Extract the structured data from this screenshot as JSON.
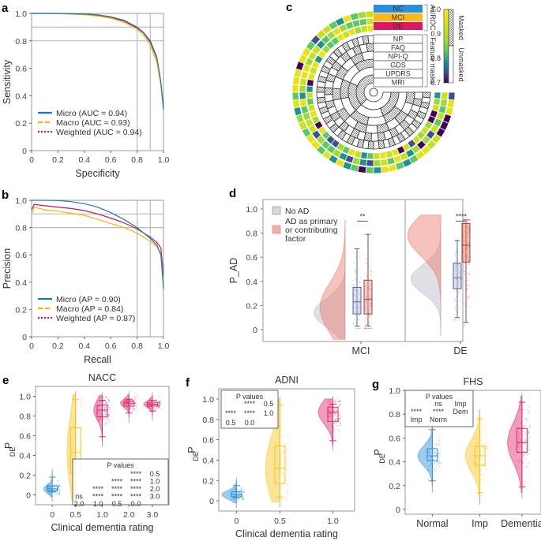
{
  "chart_data": [
    {
      "panel": "a",
      "type": "line",
      "title": "",
      "xlabel": "Specificity",
      "ylabel": "Sensitivity",
      "xlim": [
        0,
        1
      ],
      "ylim": [
        0,
        1
      ],
      "xticks": [
        "0",
        "0.2",
        "0.4",
        "0.6",
        "0.8",
        "1.0"
      ],
      "yticks": [
        "0",
        "0.2",
        "0.4",
        "0.6",
        "0.8",
        "1.0"
      ],
      "reference_lines": {
        "x": [
          0.8,
          0.9
        ],
        "y": [
          0.8,
          0.9
        ]
      },
      "legend_position": "bottom-left",
      "series": [
        {
          "name": "Micro (AUC = 0.94)",
          "color": "#1f77b4",
          "style": "solid",
          "x": [
            0,
            0.2,
            0.4,
            0.5,
            0.6,
            0.7,
            0.8,
            0.85,
            0.9,
            0.95,
            0.98,
            1.0
          ],
          "y": [
            1.0,
            1.0,
            0.995,
            0.99,
            0.975,
            0.95,
            0.9,
            0.86,
            0.8,
            0.68,
            0.5,
            0.3
          ]
        },
        {
          "name": "Macro (AUC = 0.93)",
          "color": "#f5b800",
          "style": "dashed",
          "x": [
            0,
            0.2,
            0.4,
            0.5,
            0.6,
            0.7,
            0.8,
            0.85,
            0.9,
            0.95,
            0.98,
            1.0
          ],
          "y": [
            1.0,
            0.998,
            0.99,
            0.98,
            0.965,
            0.935,
            0.885,
            0.84,
            0.77,
            0.64,
            0.47,
            0.3
          ]
        },
        {
          "name": "Weighted (AUC = 0.94)",
          "color": "#c2185b",
          "style": "dotted",
          "x": [
            0,
            0.2,
            0.4,
            0.5,
            0.6,
            0.7,
            0.8,
            0.85,
            0.9,
            0.95,
            0.98,
            1.0
          ],
          "y": [
            1.0,
            1.0,
            0.994,
            0.988,
            0.972,
            0.945,
            0.895,
            0.855,
            0.79,
            0.67,
            0.49,
            0.3
          ]
        }
      ]
    },
    {
      "panel": "b",
      "type": "line",
      "title": "",
      "xlabel": "Recall",
      "ylabel": "Precision",
      "xlim": [
        0,
        1
      ],
      "ylim": [
        0,
        1
      ],
      "xticks": [
        "0",
        "0.2",
        "0.4",
        "0.6",
        "0.8",
        "1.0"
      ],
      "yticks": [
        "0",
        "0.2",
        "0.4",
        "0.6",
        "0.8",
        "1.0"
      ],
      "reference_lines": {
        "x": [
          0.8,
          0.9
        ],
        "y": [
          0.8,
          0.9
        ]
      },
      "legend_position": "bottom-left",
      "series": [
        {
          "name": "Micro (AP = 0.90)",
          "color": "#1f77b4",
          "style": "solid",
          "x": [
            0,
            0.1,
            0.2,
            0.3,
            0.4,
            0.5,
            0.6,
            0.7,
            0.8,
            0.9,
            0.95,
            0.98,
            1.0
          ],
          "y": [
            1.0,
            1.0,
            0.998,
            0.99,
            0.975,
            0.95,
            0.91,
            0.86,
            0.8,
            0.72,
            0.67,
            0.6,
            0.35
          ]
        },
        {
          "name": "Macro (AP = 0.84)",
          "color": "#f5b800",
          "style": "dashed",
          "x": [
            0,
            0.02,
            0.1,
            0.2,
            0.3,
            0.4,
            0.5,
            0.6,
            0.7,
            0.8,
            0.9,
            0.95,
            0.98,
            1.0
          ],
          "y": [
            0.9,
            0.95,
            0.93,
            0.92,
            0.905,
            0.89,
            0.86,
            0.83,
            0.8,
            0.76,
            0.7,
            0.66,
            0.6,
            0.4
          ]
        },
        {
          "name": "Weighted (AP = 0.87)",
          "color": "#c2185b",
          "style": "dotted",
          "x": [
            0,
            0.02,
            0.1,
            0.2,
            0.3,
            0.4,
            0.5,
            0.6,
            0.7,
            0.8,
            0.9,
            0.95,
            0.98,
            1.0
          ],
          "y": [
            0.93,
            0.97,
            0.96,
            0.95,
            0.94,
            0.925,
            0.9,
            0.87,
            0.835,
            0.79,
            0.73,
            0.69,
            0.65,
            0.45
          ]
        }
      ]
    },
    {
      "panel": "c",
      "type": "heatmap",
      "title": "",
      "layout": "circular",
      "auroc_rows": [
        "NC",
        "MCI",
        "DE"
      ],
      "auroc_row_colors": [
        "#2b8fd6",
        "#f9b81c",
        "#d81b60"
      ],
      "auroc_group_label": "AUROC",
      "feature_rows": [
        "NP",
        "FAQ",
        "NPI-Q",
        "GDS",
        "UPDRS",
        "MRI"
      ],
      "feature_group_label": "Feature masks",
      "colorbar": {
        "min": 0.7,
        "max": 1.0,
        "ticks": [
          "1.0",
          "0.9",
          "0.8",
          "0.7"
        ],
        "colormap": "viridis"
      },
      "mask_legend": [
        "Masked",
        "Unmasked"
      ]
    },
    {
      "panel": "d",
      "type": "violin-box",
      "ylabel": "P_AD",
      "ylim": [
        0,
        1.0
      ],
      "yticks": [
        "0",
        "0.2",
        "0.4",
        "0.6",
        "0.8",
        "1.0"
      ],
      "categories": [
        "MCI",
        "DE"
      ],
      "legend_position": "top-left",
      "legend": [
        {
          "label": "No AD",
          "color": "#c8c8d0"
        },
        {
          "label": "AD as primary or contributing factor",
          "color": "#f0a49a"
        }
      ],
      "significance": [
        "**",
        "****"
      ],
      "boxes": [
        {
          "category": "MCI",
          "group": "No AD",
          "min": 0.03,
          "q1": 0.13,
          "median": 0.23,
          "q3": 0.35,
          "max": 0.67,
          "color": "#9a9ccc"
        },
        {
          "category": "MCI",
          "group": "AD",
          "min": 0.03,
          "q1": 0.13,
          "median": 0.25,
          "q3": 0.41,
          "max": 0.79,
          "color": "#e8776a"
        },
        {
          "category": "DE",
          "group": "No AD",
          "min": 0.1,
          "q1": 0.34,
          "median": 0.43,
          "q3": 0.55,
          "max": 0.74,
          "color": "#9a9ccc"
        },
        {
          "category": "DE",
          "group": "AD",
          "min": 0.06,
          "q1": 0.56,
          "median": 0.7,
          "q3": 0.88,
          "max": 0.88,
          "color": "#e8776a"
        }
      ]
    },
    {
      "panel": "e",
      "type": "violin-box",
      "title": "NACC",
      "xlabel": "Clinical dementia rating",
      "ylabel": "P_DE",
      "ylim": [
        -0.1,
        1.1
      ],
      "yticks": [
        "0",
        "0.2",
        "0.4",
        "0.6",
        "0.8",
        "1.0"
      ],
      "categories": [
        "0",
        "0.5",
        "1.0",
        "2.0",
        "3.0"
      ],
      "colors": [
        "#2b8fd6",
        "#f9c41c",
        "#e0246c",
        "#e0246c",
        "#e0246c"
      ],
      "boxes": [
        {
          "category": "0",
          "min": 0.03,
          "q1": 0.04,
          "median": 0.06,
          "q3": 0.09,
          "max": 0.18
        },
        {
          "category": "0.5",
          "min": 0.0,
          "q1": 0.22,
          "median": 0.43,
          "q3": 0.68,
          "max": 0.97
        },
        {
          "category": "1.0",
          "min": 0.59,
          "q1": 0.79,
          "median": 0.86,
          "q3": 0.91,
          "max": 0.96
        },
        {
          "category": "2.0",
          "min": 0.83,
          "q1": 0.9,
          "median": 0.93,
          "q3": 0.95,
          "max": 0.97
        },
        {
          "category": "3.0",
          "min": 0.85,
          "q1": 0.9,
          "median": 0.92,
          "q3": 0.94,
          "max": 0.96
        }
      ],
      "pvalue_table": {
        "title": "P values",
        "rows": [
          [
            "",
            "",
            "",
            "****",
            "0.5"
          ],
          [
            "",
            "",
            "****",
            "****",
            "1.0"
          ],
          [
            "",
            "****",
            "****",
            "****",
            "2.0"
          ],
          [
            "ns",
            "****",
            "****",
            "****",
            "3.0"
          ],
          [
            "2.0",
            "1.0",
            "0.5",
            "0.0",
            ""
          ]
        ]
      }
    },
    {
      "panel": "f",
      "type": "violin-box",
      "title": "ADNI",
      "xlabel": "Clinical dementia rating",
      "ylabel": "P_DE",
      "ylim": [
        -0.1,
        1.1
      ],
      "yticks": [
        "0",
        "0.2",
        "0.4",
        "0.6",
        "0.8",
        "1.0"
      ],
      "categories": [
        "0",
        "0.5",
        "1.0"
      ],
      "colors": [
        "#2b8fd6",
        "#f9c41c",
        "#e0246c"
      ],
      "boxes": [
        {
          "category": "0",
          "min": 0.03,
          "q1": 0.04,
          "median": 0.06,
          "q3": 0.09,
          "max": 0.15
        },
        {
          "category": "0.5",
          "min": 0.04,
          "q1": 0.17,
          "median": 0.32,
          "q3": 0.54,
          "max": 0.94
        },
        {
          "category": "1.0",
          "min": 0.59,
          "q1": 0.78,
          "median": 0.87,
          "q3": 0.92,
          "max": 0.95
        }
      ],
      "pvalue_table": {
        "title": "P values",
        "rows": [
          [
            "",
            "****",
            "0.5"
          ],
          [
            "****",
            "****",
            "1.0"
          ],
          [
            "0.5",
            "0.0",
            ""
          ]
        ]
      }
    },
    {
      "panel": "g",
      "type": "violin-box",
      "title": "FHS",
      "xlabel": "",
      "ylabel": "P_DE",
      "ylim": [
        -0.04,
        1.0
      ],
      "yticks": [
        "0",
        "0.2",
        "0.4",
        "0.6",
        "0.8",
        "1.0"
      ],
      "categories": [
        "Normal",
        "Imp",
        "Dementia"
      ],
      "colors": [
        "#2b8fd6",
        "#f9c41c",
        "#e0246c"
      ],
      "boxes": [
        {
          "category": "Normal",
          "min": 0.24,
          "q1": 0.41,
          "median": 0.45,
          "q3": 0.51,
          "max": 0.67
        },
        {
          "category": "Imp",
          "min": 0.14,
          "q1": 0.37,
          "median": 0.45,
          "q3": 0.53,
          "max": 0.76
        },
        {
          "category": "Dementia",
          "min": 0.19,
          "q1": 0.48,
          "median": 0.56,
          "q3": 0.68,
          "max": 0.9
        }
      ],
      "pvalue_table": {
        "title": "P values",
        "rows": [
          [
            "",
            "ns",
            "Imp"
          ],
          [
            "****",
            "****",
            "Dem"
          ],
          [
            "Imp",
            "Norm",
            ""
          ]
        ]
      }
    }
  ],
  "panel_labels": [
    "a",
    "b",
    "c",
    "d",
    "e",
    "f",
    "g"
  ]
}
